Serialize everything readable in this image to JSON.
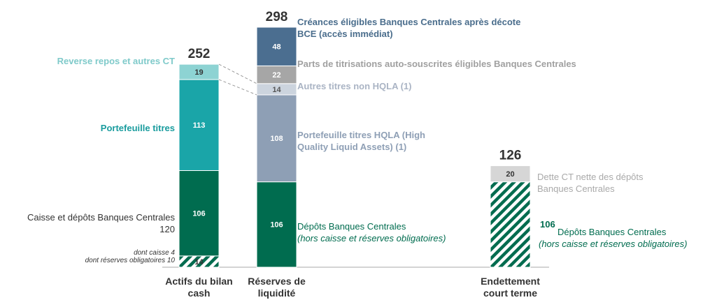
{
  "chart_data": {
    "type": "stacked_bar",
    "categories": [
      "Actifs du bilan cash",
      "Réserves de liquidité",
      "Endettement court terme"
    ],
    "totals": [
      252,
      298,
      126
    ],
    "stacks": [
      [
        {
          "value": 14,
          "color": "#006c4f",
          "hatch": true,
          "label_color": "#333333"
        },
        {
          "value": 106,
          "color": "#006c4f",
          "label_color": "#ffffff"
        },
        {
          "value": 113,
          "color": "#1aa5a8",
          "label_color": "#ffffff"
        },
        {
          "value": 19,
          "color": "#8dd3d3",
          "label_color": "#333333"
        }
      ],
      [
        {
          "value": 106,
          "color": "#006c4f",
          "label_color": "#ffffff"
        },
        {
          "value": 108,
          "color": "#8e9fb5",
          "label_color": "#ffffff"
        },
        {
          "value": 14,
          "color": "#ccd4de",
          "label_color": "#555555"
        },
        {
          "value": 22,
          "color": "#a6a6a6",
          "label_color": "#ffffff"
        },
        {
          "value": 48,
          "color": "#4b6e90",
          "label_color": "#ffffff"
        }
      ],
      [
        {
          "value": 106,
          "color": "#006c4f",
          "hatch": true
        },
        {
          "value": 20,
          "color": "#d6d6d6",
          "label_color": "#333333"
        }
      ]
    ],
    "annotations": [
      "Reverse repos et autres CT",
      "Portefeuille titres",
      "Caisse et dépôts Banques Centrales",
      120,
      "dont caisse 4",
      "dont réserves obligatoires 10",
      "Créances éligibles Banques Centrales après décote BCE (accès immédiat)",
      "Parts de titrisations auto-souscrites éligibles Banques Centrales",
      "Autres titres non HQLA (1)",
      "Portefeuille titres HQLA (High Quality Liquid Assets) (1)",
      "Dépôts Banques Centrales",
      "(hors caisse et réserves obligatoires)",
      "Dette CT nette des dépôts Banques Centrales",
      "Dépôts Banques Centrales",
      "(hors caisse et réserves obligatoires)"
    ]
  }
}
